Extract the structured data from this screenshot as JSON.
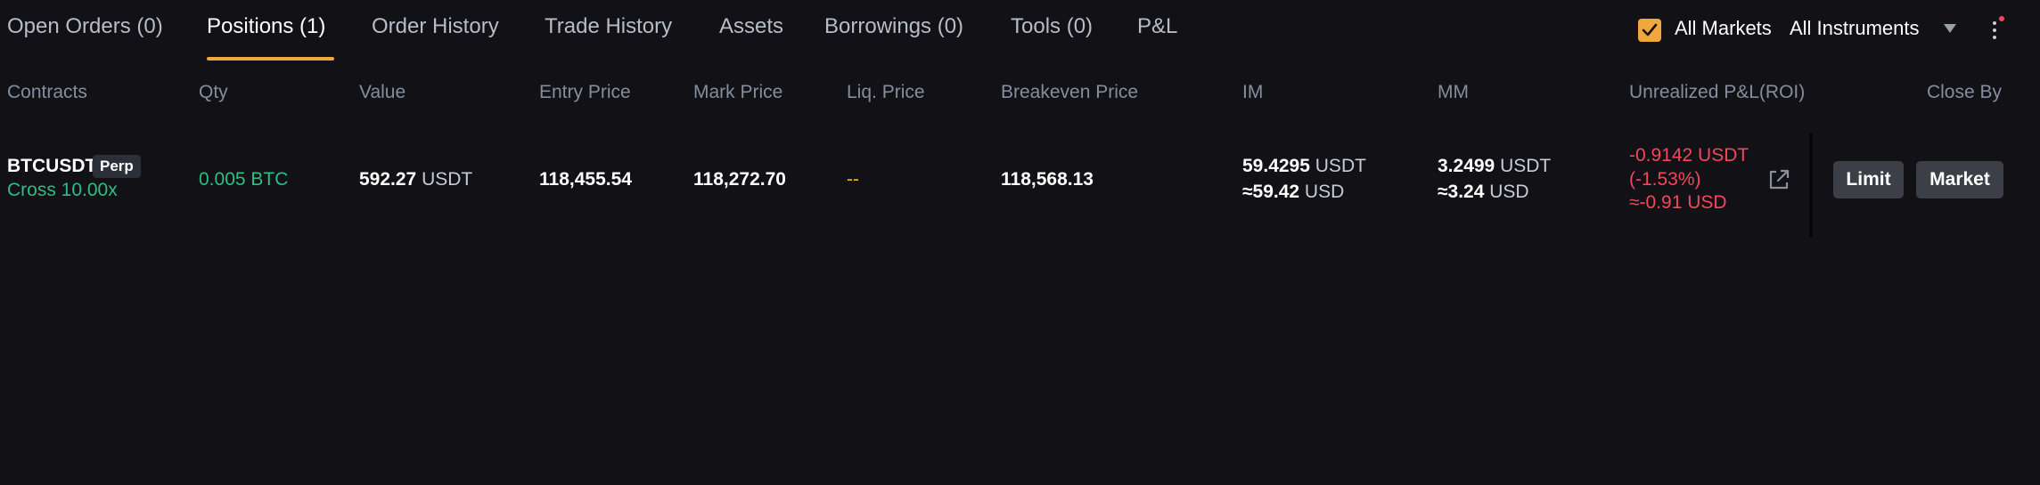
{
  "tabs": [
    {
      "label": "Open Orders (0)",
      "active": false
    },
    {
      "label": "Positions (1)",
      "active": true
    },
    {
      "label": "Order History",
      "active": false
    },
    {
      "label": "Trade History",
      "active": false
    },
    {
      "label": "Assets",
      "active": false
    },
    {
      "label": "Borrowings (0)",
      "active": false
    },
    {
      "label": "Tools (0)",
      "active": false
    },
    {
      "label": "P&L",
      "active": false
    }
  ],
  "filters": {
    "all_markets_label": "All Markets",
    "all_markets_checked": true,
    "instrument_select": "All Instruments",
    "more_icon": "more-vertical-icon"
  },
  "headers": {
    "contracts": "Contracts",
    "qty": "Qty",
    "value": "Value",
    "entry_price": "Entry Price",
    "mark_price": "Mark Price",
    "liq_price": "Liq. Price",
    "breakeven_price": "Breakeven Price",
    "im": "IM",
    "mm": "MM",
    "unrealized_pnl": "Unrealized P&L(ROI)",
    "close_by": "Close By"
  },
  "position": {
    "symbol": "BTCUSDT",
    "type_badge": "Perp",
    "margin_mode": "Cross 10.00x",
    "qty": "0.005 BTC",
    "value": "592.27",
    "value_unit": "USDT",
    "entry_price": "118,455.54",
    "mark_price": "118,272.70",
    "liq_price": "--",
    "breakeven_price": "118,568.13",
    "im_value": "59.4295",
    "im_unit": "USDT",
    "im_usd": "≈59.42",
    "im_usd_unit": "USD",
    "mm_value": "3.2499",
    "mm_unit": "USDT",
    "mm_usd": "≈3.24",
    "mm_usd_unit": "USD",
    "pnl": "-0.9142 USDT",
    "roi": "(-1.53%)",
    "pnl_usd": "≈-0.91 USD",
    "share_icon": "external-link-icon",
    "close_limit": "Limit",
    "close_market": "Market"
  },
  "colors": {
    "accent": "#f0a83c",
    "positive": "#2ebd85",
    "negative": "#f6465d",
    "warning": "#f0b90b",
    "background": "#111116"
  }
}
